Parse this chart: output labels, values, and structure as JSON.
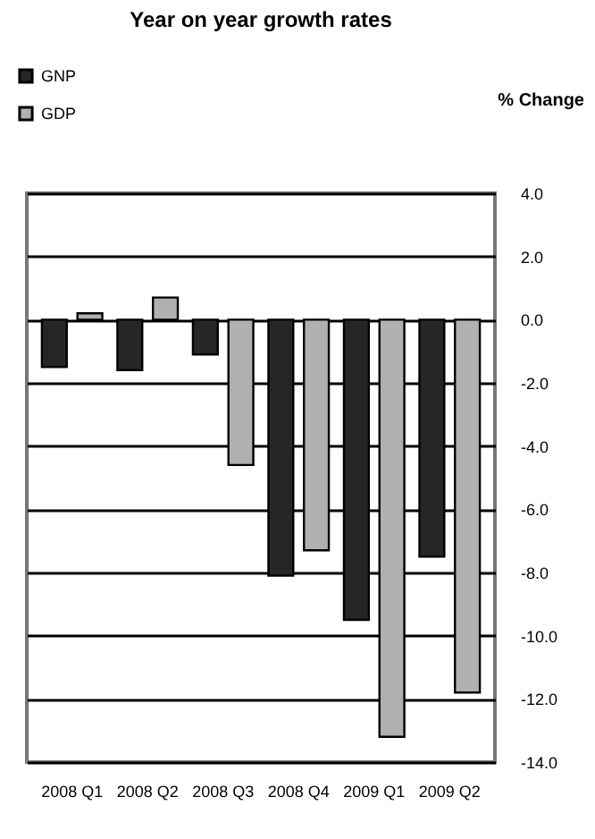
{
  "chart_data": {
    "type": "bar",
    "title": "Year on year growth rates",
    "annotations": [
      "% Change"
    ],
    "categories": [
      "2008 Q1",
      "2008 Q2",
      "2008 Q3",
      "2008 Q4",
      "2009 Q1",
      "2009 Q2"
    ],
    "series": [
      {
        "name": "GNP",
        "color": "#262626",
        "values": [
          -1.5,
          -1.6,
          -1.1,
          -8.1,
          -9.5,
          -7.5
        ]
      },
      {
        "name": "GDP",
        "color": "#b0b0b0",
        "values": [
          0.2,
          0.7,
          -4.6,
          -7.3,
          -13.2,
          -11.8
        ]
      }
    ],
    "ylim": [
      -14,
      4
    ],
    "yticks": [
      {
        "value": -14,
        "label": "-14.0"
      },
      {
        "value": -12,
        "label": "-12.0"
      },
      {
        "value": -10,
        "label": "-10.0"
      },
      {
        "value": -8,
        "label": "-8.0"
      },
      {
        "value": -6,
        "label": "-6.0"
      },
      {
        "value": -4,
        "label": "-4.0"
      },
      {
        "value": -2,
        "label": "-2.0"
      },
      {
        "value": 0,
        "label": "0.0"
      },
      {
        "value": 2,
        "label": "2.0"
      },
      {
        "value": 4,
        "label": "4.0"
      }
    ],
    "grid": "y",
    "legend": "top left"
  }
}
